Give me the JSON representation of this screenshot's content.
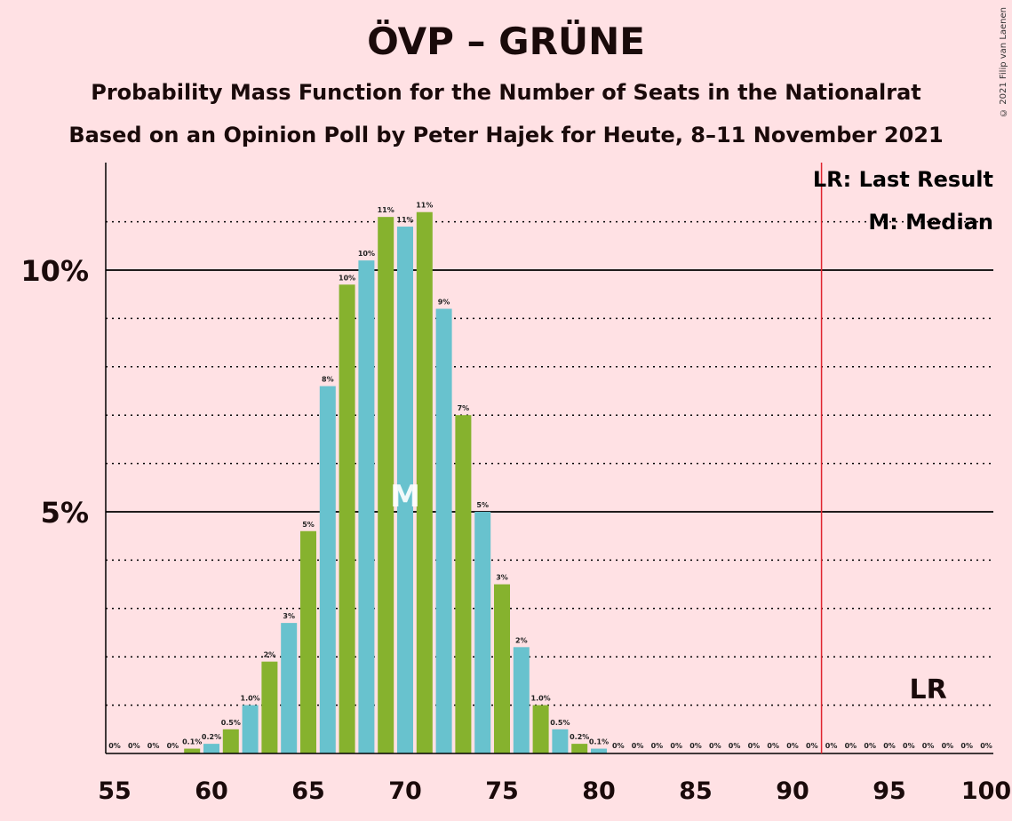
{
  "title": "ÖVP – GRÜNE",
  "subtitle": "Probability Mass Function for the Number of Seats in the Nationalrat",
  "subtitle2": "Based on an Opinion Poll by Peter Hajek for Heute, 8–11 November 2021",
  "copyright": "© 2021 Filip van Laenen",
  "legend": {
    "last_result": "LR: Last Result",
    "median": "M: Median"
  },
  "markers": {
    "median_label": "M",
    "last_result_label": "LR"
  },
  "colors": {
    "background": "#FFE1E4",
    "bar_blue": "#68C2CE",
    "bar_green": "#86B22E",
    "last_result_line": "#E0242F"
  },
  "chart_data": {
    "type": "bar",
    "x": [
      55,
      56,
      57,
      58,
      59,
      60,
      61,
      62,
      63,
      64,
      65,
      66,
      67,
      68,
      69,
      70,
      71,
      72,
      73,
      74,
      75,
      76,
      77,
      78,
      79,
      80,
      81,
      82,
      83,
      84,
      85,
      86,
      87,
      88,
      89,
      90,
      91,
      92,
      93,
      94,
      95,
      96,
      97,
      98,
      99,
      100
    ],
    "values": [
      0,
      0,
      0,
      0,
      0.1,
      0.2,
      0.5,
      1.0,
      1.9,
      2.7,
      4.6,
      7.6,
      9.7,
      10.2,
      11.1,
      10.9,
      11.2,
      9.2,
      7.0,
      5.0,
      3.5,
      2.2,
      1.0,
      0.5,
      0.2,
      0.1,
      0,
      0,
      0,
      0,
      0,
      0,
      0,
      0,
      0,
      0,
      0,
      0,
      0,
      0,
      0,
      0,
      0,
      0,
      0,
      0
    ],
    "data_labels": [
      "0%",
      "0%",
      "0%",
      "0%",
      "0.1%",
      "0.2%",
      "0.5%",
      "1.0%",
      "2%",
      "3%",
      "5%",
      "8%",
      "10%",
      "10%",
      "11%",
      "11%",
      "11%",
      "9%",
      "7%",
      "5%",
      "3%",
      "2%",
      "1.0%",
      "0.5%",
      "0.2%",
      "0.1%",
      "0%",
      "0%",
      "0%",
      "0%",
      "0%",
      "0%",
      "0%",
      "0%",
      "0%",
      "0%",
      "0%",
      "0%",
      "0%",
      "0%",
      "0%",
      "0%",
      "0%",
      "0%",
      "0%",
      "0%"
    ],
    "x_ticks": [
      "55",
      "60",
      "65",
      "70",
      "75",
      "80",
      "85",
      "90",
      "95",
      "100"
    ],
    "y_ticks": [
      "5%",
      "10%"
    ],
    "ylim": [
      0,
      12.2
    ],
    "median": 70,
    "last_result": 92,
    "grid": "dotted every 1%, solid at 5% and 10%",
    "legend_placement": "top-right"
  }
}
